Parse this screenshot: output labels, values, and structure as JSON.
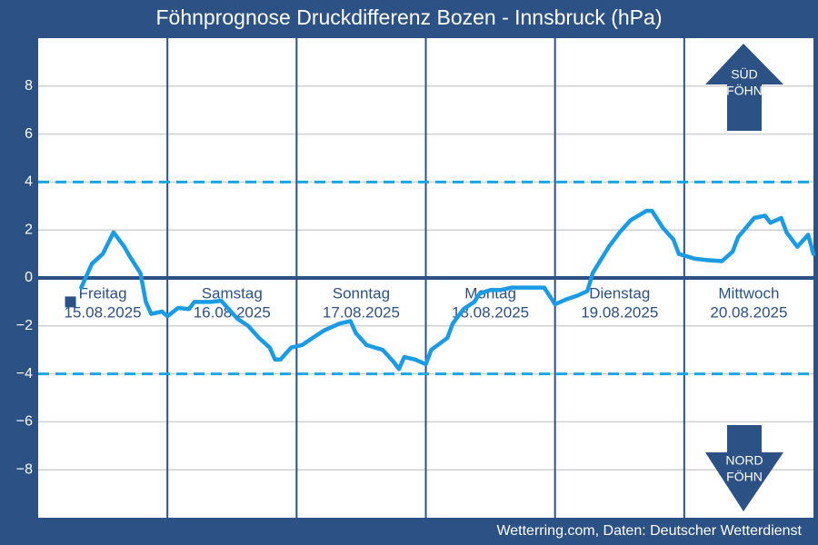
{
  "chart_data": {
    "type": "line",
    "title": "Föhnprognose Druckdifferenz Bozen - Innsbruck (hPa)",
    "source": "Wetterring.com, Daten: Deutscher Wetterdienst",
    "x": [
      8,
      10,
      12,
      14,
      16,
      17,
      19,
      20,
      21,
      23,
      24,
      26,
      28,
      29,
      32,
      34,
      37,
      39,
      41,
      43,
      44,
      45,
      47,
      49,
      51,
      53,
      56,
      58,
      59,
      61,
      64,
      66,
      67,
      68,
      70,
      72,
      73,
      76,
      77,
      79,
      81,
      82,
      84,
      86,
      88,
      90,
      94,
      96,
      98,
      100,
      102,
      103,
      106,
      108,
      110,
      113,
      114,
      116,
      118,
      119,
      122,
      124,
      127,
      129,
      130,
      133,
      135,
      136,
      138,
      139,
      141,
      143,
      144
    ],
    "values": [
      -0.4,
      0.6,
      1.0,
      1.9,
      1.3,
      0.9,
      0.2,
      -1.0,
      -1.5,
      -1.4,
      -1.6,
      -1.25,
      -1.3,
      -1.0,
      -1.0,
      -0.95,
      -1.7,
      -2.0,
      -2.5,
      -2.9,
      -3.4,
      -3.4,
      -2.9,
      -2.8,
      -2.5,
      -2.2,
      -1.9,
      -1.8,
      -2.3,
      -2.8,
      -3.0,
      -3.5,
      -3.8,
      -3.3,
      -3.4,
      -3.6,
      -3.0,
      -2.5,
      -1.9,
      -1.3,
      -1.0,
      -0.65,
      -0.5,
      -0.5,
      -0.4,
      -0.4,
      -0.4,
      -1.1,
      -0.9,
      -0.75,
      -0.55,
      0.2,
      1.3,
      1.9,
      2.4,
      2.8,
      2.8,
      2.1,
      1.6,
      1.0,
      0.8,
      0.75,
      0.7,
      1.1,
      1.7,
      2.5,
      2.6,
      2.3,
      2.5,
      1.9,
      1.3,
      1.8,
      1.0
    ],
    "color": "#1a9be3",
    "xlim": [
      0,
      144
    ],
    "ylim": [
      -10,
      10
    ],
    "yticks": [
      {
        "value": -8,
        "label": "−8"
      },
      {
        "value": -6,
        "label": "−6"
      },
      {
        "value": -4,
        "label": "−4"
      },
      {
        "value": -2,
        "label": "−2"
      },
      0,
      2,
      4,
      6,
      8
    ],
    "grid": true,
    "threshold_lines": [
      4,
      -4
    ],
    "baseline": 0,
    "day_boundaries": [
      24,
      48,
      72,
      96,
      120
    ],
    "days": [
      {
        "name": "Freitag",
        "date": "15.08.2025"
      },
      {
        "name": "Samstag",
        "date": "16.08.2025"
      },
      {
        "name": "Sonntag",
        "date": "17.08.2025"
      },
      {
        "name": "Montag",
        "date": "18.08.2025"
      },
      {
        "name": "Dienstag",
        "date": "19.08.2025"
      },
      {
        "name": "Mittwoch",
        "date": "20.08.2025"
      }
    ],
    "current_marker": {
      "x": 6,
      "y": -1
    },
    "arrows": {
      "up": [
        "SÜD",
        "FÖHN"
      ],
      "down": [
        "NORD",
        "FÖHN"
      ]
    }
  }
}
